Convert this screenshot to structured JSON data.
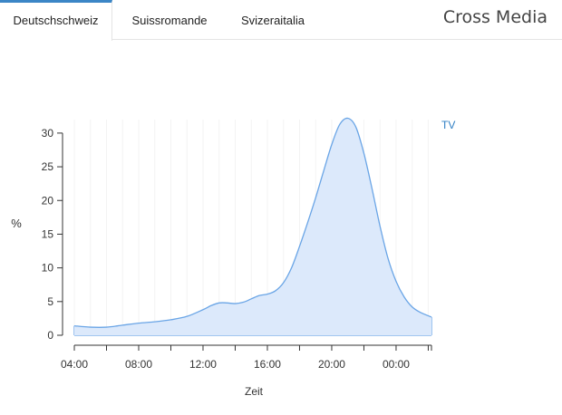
{
  "tabs": [
    {
      "label": "Deutschschweiz",
      "active": true
    },
    {
      "label": "Suissromande",
      "active": false
    },
    {
      "label": "Svizeraitalia",
      "active": false
    }
  ],
  "brand": "Cross Media",
  "colors": {
    "accent": "#3b86c6",
    "series_line": "#6aa5e6",
    "series_fill": "#dce9fb",
    "legend_text": "#2f7fc4"
  },
  "chart_data": {
    "type": "area",
    "title": "",
    "xlabel": "Zeit",
    "ylabel": "%",
    "ylim": [
      0,
      32
    ],
    "xlim": [
      4,
      26.2
    ],
    "xticks": [
      4,
      8,
      12,
      16,
      20,
      24
    ],
    "xtick_labels": [
      "04:00",
      "08:00",
      "12:00",
      "16:00",
      "20:00",
      "00:00"
    ],
    "yticks": [
      0,
      5,
      10,
      15,
      20,
      25,
      30
    ],
    "legend": "top-right",
    "series": [
      {
        "name": "TV",
        "x": [
          4,
          5,
          6,
          7,
          8,
          9,
          10,
          11,
          12,
          12.5,
          13,
          13.5,
          14,
          14.5,
          15,
          15.5,
          16,
          16.5,
          17,
          17.5,
          18,
          18.5,
          19,
          19.5,
          20,
          20.5,
          21,
          21.5,
          22,
          22.5,
          23,
          23.5,
          24,
          24.5,
          25,
          25.5,
          26.2
        ],
        "values": [
          1.4,
          1.2,
          1.2,
          1.5,
          1.8,
          2.0,
          2.3,
          2.8,
          3.8,
          4.4,
          4.8,
          4.8,
          4.7,
          4.9,
          5.4,
          5.9,
          6.1,
          6.6,
          7.8,
          10.0,
          13.2,
          16.7,
          20.4,
          24.4,
          28.3,
          31.3,
          32.2,
          30.9,
          27.0,
          21.8,
          16.2,
          11.4,
          8.0,
          5.7,
          4.2,
          3.4,
          2.7
        ]
      }
    ]
  }
}
